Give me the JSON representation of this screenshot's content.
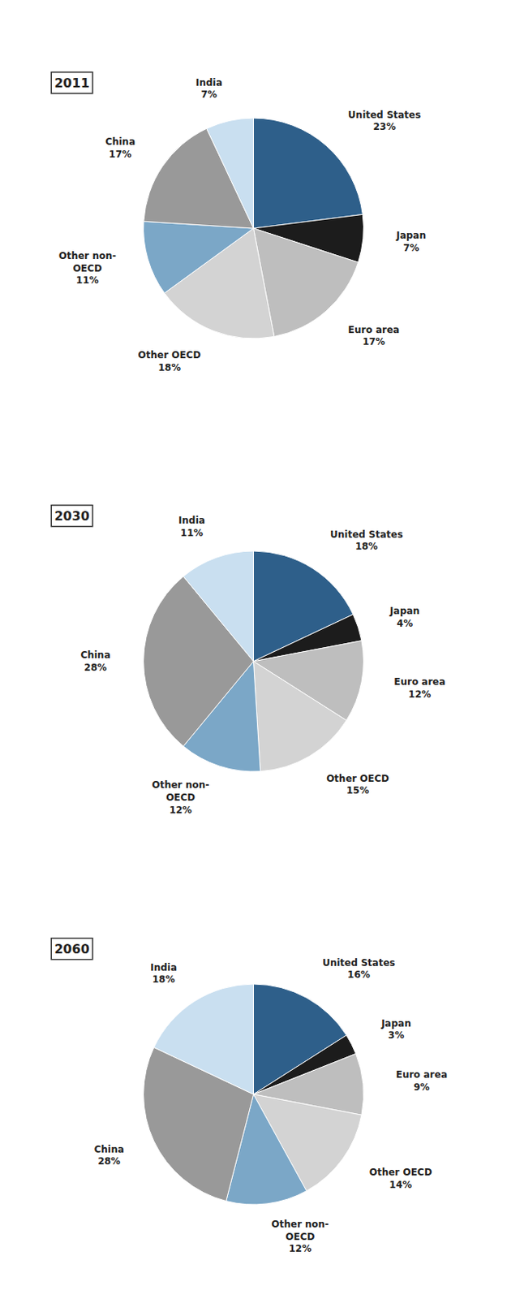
{
  "chart_data": [
    {
      "type": "pie",
      "title": "2011",
      "categories": [
        "United States",
        "Japan",
        "Euro area",
        "Other OECD",
        "Other non-\nOECD",
        "China",
        "India"
      ],
      "values": [
        23,
        7,
        17,
        18,
        11,
        17,
        7
      ],
      "value_labels": [
        "23%",
        "7%",
        "17%",
        "18%",
        "11%",
        "17%",
        "7%"
      ],
      "colors": [
        "#2E5F8A",
        "#1C1C1C",
        "#BEBEBE",
        "#D3D3D3",
        "#7BA7C7",
        "#999999",
        "#C9DFF0"
      ],
      "data_labels": true
    },
    {
      "type": "pie",
      "title": "2030",
      "categories": [
        "United States",
        "Japan",
        "Euro area",
        "Other OECD",
        "Other non-\nOECD",
        "China",
        "India"
      ],
      "values": [
        18,
        4,
        12,
        15,
        12,
        28,
        11
      ],
      "value_labels": [
        "18%",
        "4%",
        "12%",
        "15%",
        "12%",
        "28%",
        "11%"
      ],
      "colors": [
        "#2E5F8A",
        "#1C1C1C",
        "#BEBEBE",
        "#D3D3D3",
        "#7BA7C7",
        "#999999",
        "#C9DFF0"
      ],
      "data_labels": true
    },
    {
      "type": "pie",
      "title": "2060",
      "categories": [
        "United States",
        "Japan",
        "Euro area",
        "Other OECD",
        "Other non-\nOECD",
        "China",
        "India"
      ],
      "values": [
        16,
        3,
        9,
        14,
        12,
        28,
        18
      ],
      "value_labels": [
        "16%",
        "3%",
        "9%",
        "14%",
        "12%",
        "28%",
        "18%"
      ],
      "colors": [
        "#2E5F8A",
        "#1C1C1C",
        "#BEBEBE",
        "#D3D3D3",
        "#7BA7C7",
        "#999999",
        "#C9DFF0"
      ],
      "data_labels": true
    }
  ]
}
